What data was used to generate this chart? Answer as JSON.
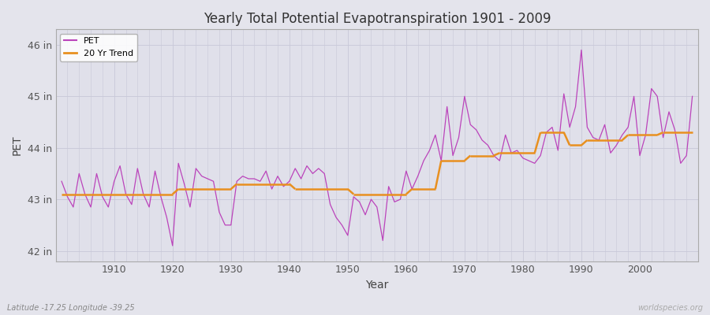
{
  "title": "Yearly Total Potential Evapotranspiration 1901 - 2009",
  "xlabel": "Year",
  "ylabel": "PET",
  "subtitle": "Latitude -17.25 Longitude -39.25",
  "watermark": "worldspecies.org",
  "pet_color": "#bb44bb",
  "trend_color": "#e89020",
  "bg_color": "#e4e4ec",
  "plot_bg_color": "#e0e0ea",
  "grid_color": "#c8c8d8",
  "ylim": [
    41.8,
    46.3
  ],
  "yticks": [
    42,
    43,
    44,
    45,
    46
  ],
  "ytick_labels": [
    "42 in",
    "43 in",
    "44 in",
    "45 in",
    "46 in"
  ],
  "xticks": [
    1910,
    1920,
    1930,
    1940,
    1950,
    1960,
    1970,
    1980,
    1990,
    2000
  ],
  "xlim": [
    1900,
    2010
  ],
  "years": [
    1901,
    1902,
    1903,
    1904,
    1905,
    1906,
    1907,
    1908,
    1909,
    1910,
    1911,
    1912,
    1913,
    1914,
    1915,
    1916,
    1917,
    1918,
    1919,
    1920,
    1921,
    1922,
    1923,
    1924,
    1925,
    1926,
    1927,
    1928,
    1929,
    1930,
    1931,
    1932,
    1933,
    1934,
    1935,
    1936,
    1937,
    1938,
    1939,
    1940,
    1941,
    1942,
    1943,
    1944,
    1945,
    1946,
    1947,
    1948,
    1949,
    1950,
    1951,
    1952,
    1953,
    1954,
    1955,
    1956,
    1957,
    1958,
    1959,
    1960,
    1961,
    1962,
    1963,
    1964,
    1965,
    1966,
    1967,
    1968,
    1969,
    1970,
    1971,
    1972,
    1973,
    1974,
    1975,
    1976,
    1977,
    1978,
    1979,
    1980,
    1981,
    1982,
    1983,
    1984,
    1985,
    1986,
    1987,
    1988,
    1989,
    1990,
    1991,
    1992,
    1993,
    1994,
    1995,
    1996,
    1997,
    1998,
    1999,
    2000,
    2001,
    2002,
    2003,
    2004,
    2005,
    2006,
    2007,
    2008,
    2009
  ],
  "pet_values": [
    43.35,
    43.05,
    42.85,
    43.5,
    43.1,
    42.85,
    43.5,
    43.05,
    42.85,
    43.35,
    43.65,
    43.1,
    42.9,
    43.6,
    43.1,
    42.85,
    43.55,
    43.05,
    42.65,
    42.1,
    43.7,
    43.3,
    42.85,
    43.6,
    43.45,
    43.4,
    43.35,
    42.75,
    42.5,
    42.5,
    43.35,
    43.45,
    43.4,
    43.4,
    43.35,
    43.55,
    43.2,
    43.45,
    43.25,
    43.35,
    43.6,
    43.4,
    43.65,
    43.5,
    43.6,
    43.5,
    42.9,
    42.65,
    42.5,
    42.3,
    43.05,
    42.95,
    42.7,
    43.0,
    42.85,
    42.2,
    43.25,
    42.95,
    43.0,
    43.55,
    43.2,
    43.45,
    43.75,
    43.95,
    44.25,
    43.75,
    44.8,
    43.85,
    44.2,
    45.0,
    44.45,
    44.35,
    44.15,
    44.05,
    43.85,
    43.75,
    44.25,
    43.9,
    43.95,
    43.8,
    43.75,
    43.7,
    43.85,
    44.3,
    44.4,
    43.95,
    45.05,
    44.4,
    44.8,
    45.9,
    44.4,
    44.2,
    44.15,
    44.45,
    43.9,
    44.05,
    44.25,
    44.4,
    45.0,
    43.85,
    44.25,
    45.15,
    45.0,
    44.2,
    44.7,
    44.35,
    43.7,
    43.85,
    45.0
  ],
  "trend_segments": [
    {
      "x": [
        1901,
        1920
      ],
      "y": [
        43.1,
        43.1
      ]
    },
    {
      "x": [
        1920,
        1921
      ],
      "y": [
        43.1,
        43.2
      ]
    },
    {
      "x": [
        1921,
        1930
      ],
      "y": [
        43.2,
        43.2
      ]
    },
    {
      "x": [
        1930,
        1931
      ],
      "y": [
        43.2,
        43.3
      ]
    },
    {
      "x": [
        1931,
        1940
      ],
      "y": [
        43.3,
        43.3
      ]
    },
    {
      "x": [
        1940,
        1941
      ],
      "y": [
        43.3,
        43.2
      ]
    },
    {
      "x": [
        1941,
        1950
      ],
      "y": [
        43.2,
        43.2
      ]
    },
    {
      "x": [
        1950,
        1951
      ],
      "y": [
        43.2,
        43.1
      ]
    },
    {
      "x": [
        1951,
        1960
      ],
      "y": [
        43.1,
        43.1
      ]
    },
    {
      "x": [
        1960,
        1961
      ],
      "y": [
        43.1,
        43.2
      ]
    },
    {
      "x": [
        1961,
        1965
      ],
      "y": [
        43.2,
        43.2
      ]
    },
    {
      "x": [
        1965,
        1966
      ],
      "y": [
        43.2,
        43.75
      ]
    },
    {
      "x": [
        1966,
        1970
      ],
      "y": [
        43.75,
        43.75
      ]
    },
    {
      "x": [
        1970,
        1971
      ],
      "y": [
        43.75,
        43.85
      ]
    },
    {
      "x": [
        1971,
        1975
      ],
      "y": [
        43.85,
        43.85
      ]
    },
    {
      "x": [
        1975,
        1976
      ],
      "y": [
        43.85,
        43.9
      ]
    },
    {
      "x": [
        1976,
        1982
      ],
      "y": [
        43.9,
        43.9
      ]
    },
    {
      "x": [
        1982,
        1983
      ],
      "y": [
        43.9,
        44.3
      ]
    },
    {
      "x": [
        1983,
        1987
      ],
      "y": [
        44.3,
        44.3
      ]
    },
    {
      "x": [
        1987,
        1988
      ],
      "y": [
        44.3,
        44.05
      ]
    },
    {
      "x": [
        1988,
        1990
      ],
      "y": [
        44.05,
        44.05
      ]
    },
    {
      "x": [
        1990,
        1991
      ],
      "y": [
        44.05,
        44.15
      ]
    },
    {
      "x": [
        1991,
        1997
      ],
      "y": [
        44.15,
        44.15
      ]
    },
    {
      "x": [
        1997,
        1998
      ],
      "y": [
        44.15,
        44.25
      ]
    },
    {
      "x": [
        1998,
        2003
      ],
      "y": [
        44.25,
        44.25
      ]
    },
    {
      "x": [
        2003,
        2004
      ],
      "y": [
        44.25,
        44.3
      ]
    },
    {
      "x": [
        2004,
        2009
      ],
      "y": [
        44.3,
        44.3
      ]
    }
  ]
}
